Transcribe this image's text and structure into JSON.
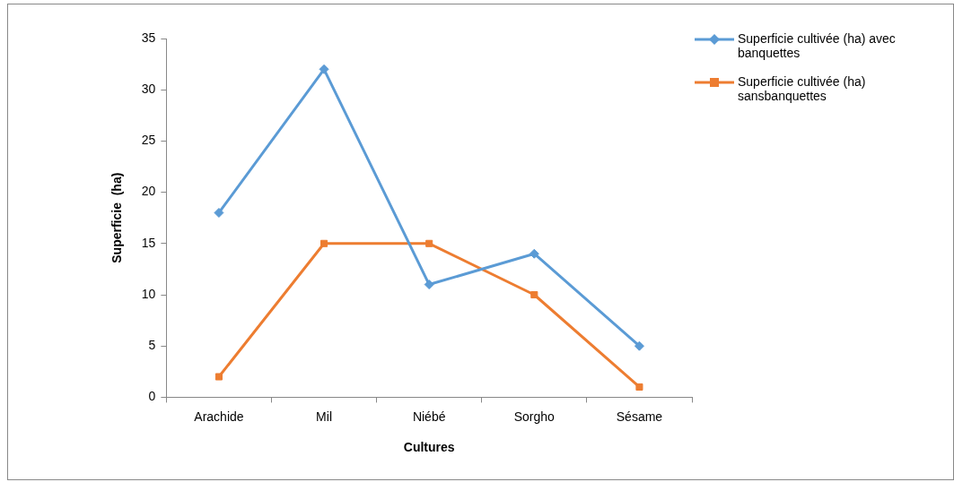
{
  "chart_data": {
    "type": "line",
    "xlabel": "Cultures",
    "ylabel": "Superficie  (ha)",
    "categories": [
      "Arachide",
      "Mil",
      "Niébé",
      "Sorgho",
      "Sésame"
    ],
    "series": [
      {
        "name": "Superficie  cultivée (ha) avec banquettes",
        "color": "#5b9bd5",
        "marker": "diamond",
        "values": [
          18,
          32,
          11,
          14,
          5
        ]
      },
      {
        "name": "Superficie  cultivée (ha) sansbanquettes",
        "color": "#ed7d31",
        "marker": "square",
        "values": [
          2,
          15,
          15,
          10,
          1
        ]
      }
    ],
    "ylim": [
      0,
      35
    ],
    "yticks": [
      0,
      5,
      10,
      15,
      20,
      25,
      30,
      35
    ],
    "grid": false,
    "legend": "top right",
    "line_style": "solid"
  }
}
